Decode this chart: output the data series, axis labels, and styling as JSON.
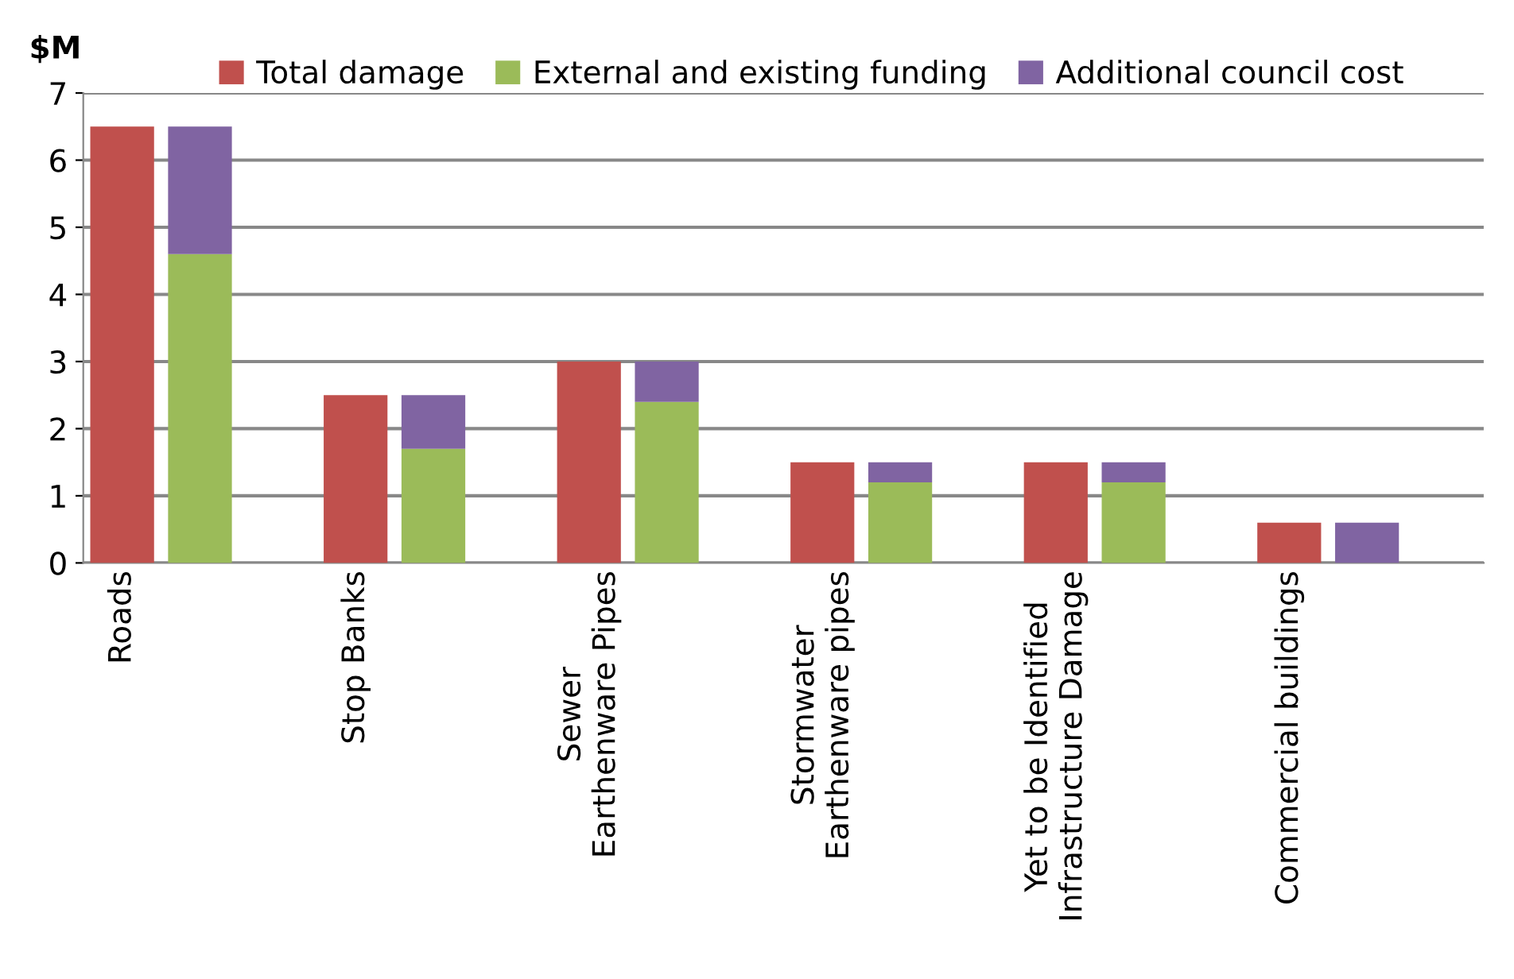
{
  "chart_data": {
    "type": "bar",
    "ylabel": "$M",
    "stacked": true,
    "categories": [
      "Roads",
      null,
      null,
      "Stop Banks",
      null,
      null,
      "Sewer\nEarthenware Pipes",
      null,
      null,
      "Stormwater\nEarthenware pipes",
      null,
      null,
      "Yet to be Identified\nInfrastructure Damage",
      null,
      null,
      "Commercial buildings",
      null,
      null
    ],
    "series": [
      {
        "name": "Total damage",
        "color": "#c0504d",
        "values": [
          6.5,
          null,
          null,
          2.5,
          null,
          null,
          3.0,
          null,
          null,
          1.5,
          null,
          null,
          1.5,
          null,
          null,
          0.6,
          null,
          null
        ]
      },
      {
        "name": "External and existing funding",
        "color": "#9bbb59",
        "values": [
          null,
          4.6,
          null,
          null,
          1.7,
          null,
          null,
          2.4,
          null,
          null,
          1.2,
          null,
          null,
          1.2,
          null,
          null,
          0,
          null
        ]
      },
      {
        "name": "Additional council cost",
        "color": "#8064a2",
        "values": [
          null,
          1.9,
          null,
          null,
          0.8,
          null,
          null,
          0.6,
          null,
          null,
          0.3,
          null,
          null,
          0.3,
          null,
          null,
          0.6,
          null
        ]
      }
    ],
    "ylim": [
      0,
      7
    ],
    "yticks": [
      0,
      1,
      2,
      3,
      4,
      5,
      6,
      7
    ],
    "grid": "y",
    "legend": "top"
  }
}
